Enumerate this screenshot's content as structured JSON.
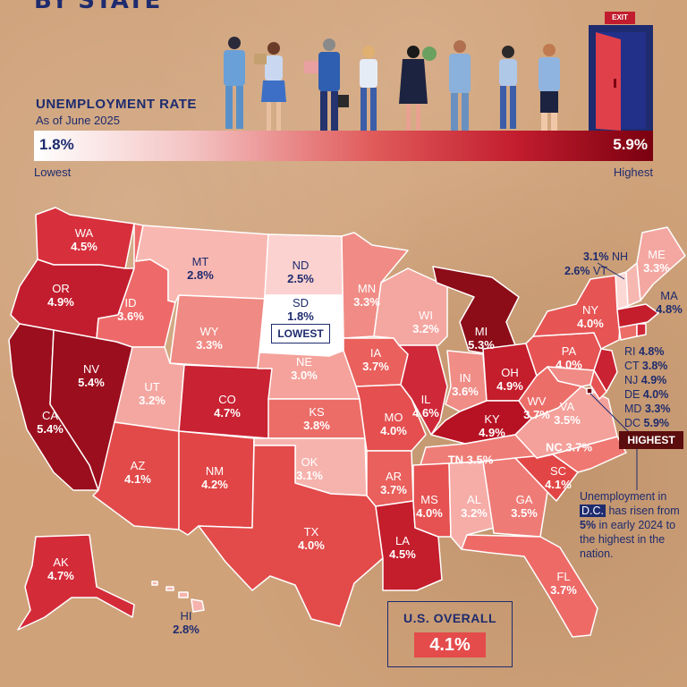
{
  "title": "BY STATE",
  "legend": {
    "heading": "UNEMPLOYMENT RATE",
    "subheading": "As of June 2025",
    "min_value": "1.8%",
    "max_value": "5.9%",
    "min_caption": "Lowest",
    "max_caption": "Highest",
    "exit_sign": "EXIT"
  },
  "colors": {
    "navy": "#1e2b6e",
    "scale": [
      "#ffffff",
      "#f4c4c4",
      "#e05a5a",
      "#c21d2e",
      "#7a0010"
    ]
  },
  "states": {
    "WA": {
      "abbr": "WA",
      "rate": "4.5%"
    },
    "OR": {
      "abbr": "OR",
      "rate": "4.9%"
    },
    "CA": {
      "abbr": "CA",
      "rate": "5.4%"
    },
    "NV": {
      "abbr": "NV",
      "rate": "5.4%"
    },
    "ID": {
      "abbr": "ID",
      "rate": "3.6%"
    },
    "MT": {
      "abbr": "MT",
      "rate": "2.8%"
    },
    "WY": {
      "abbr": "WY",
      "rate": "3.3%"
    },
    "UT": {
      "abbr": "UT",
      "rate": "3.2%"
    },
    "AZ": {
      "abbr": "AZ",
      "rate": "4.1%"
    },
    "CO": {
      "abbr": "CO",
      "rate": "4.7%"
    },
    "NM": {
      "abbr": "NM",
      "rate": "4.2%"
    },
    "ND": {
      "abbr": "ND",
      "rate": "2.5%"
    },
    "SD": {
      "abbr": "SD",
      "rate": "1.8%"
    },
    "NE": {
      "abbr": "NE",
      "rate": "3.0%"
    },
    "KS": {
      "abbr": "KS",
      "rate": "3.8%"
    },
    "OK": {
      "abbr": "OK",
      "rate": "3.1%"
    },
    "TX": {
      "abbr": "TX",
      "rate": "4.0%"
    },
    "MN": {
      "abbr": "MN",
      "rate": "3.3%"
    },
    "IA": {
      "abbr": "IA",
      "rate": "3.7%"
    },
    "MO": {
      "abbr": "MO",
      "rate": "4.0%"
    },
    "AR": {
      "abbr": "AR",
      "rate": "3.7%"
    },
    "LA": {
      "abbr": "LA",
      "rate": "4.5%"
    },
    "WI": {
      "abbr": "WI",
      "rate": "3.2%"
    },
    "IL": {
      "abbr": "IL",
      "rate": "4.6%"
    },
    "MI": {
      "abbr": "MI",
      "rate": "5.3%"
    },
    "IN": {
      "abbr": "IN",
      "rate": "3.6%"
    },
    "OH": {
      "abbr": "OH",
      "rate": "4.9%"
    },
    "KY": {
      "abbr": "KY",
      "rate": "4.9%"
    },
    "TN": {
      "abbr": "TN",
      "rate": "3.5%"
    },
    "MS": {
      "abbr": "MS",
      "rate": "4.0%"
    },
    "AL": {
      "abbr": "AL",
      "rate": "3.2%"
    },
    "GA": {
      "abbr": "GA",
      "rate": "3.5%"
    },
    "FL": {
      "abbr": "FL",
      "rate": "3.7%"
    },
    "SC": {
      "abbr": "SC",
      "rate": "4.1%"
    },
    "NC": {
      "abbr": "NC",
      "rate": "3.7%"
    },
    "VA": {
      "abbr": "VA",
      "rate": "3.5%"
    },
    "WV": {
      "abbr": "WV",
      "rate": "3.7%"
    },
    "PA": {
      "abbr": "PA",
      "rate": "4.0%"
    },
    "NY": {
      "abbr": "NY",
      "rate": "4.0%"
    },
    "ME": {
      "abbr": "ME",
      "rate": "3.3%"
    },
    "MA": {
      "abbr": "MA",
      "rate": "4.8%"
    },
    "AK": {
      "abbr": "AK",
      "rate": "4.7%"
    },
    "HI": {
      "abbr": "HI",
      "rate": "2.8%"
    },
    "NH": {
      "abbr": "NH",
      "rate": "3.1%"
    },
    "VT": {
      "abbr": "VT",
      "rate": "2.6%"
    },
    "RI": {
      "abbr": "RI",
      "rate": "4.8%"
    },
    "CT": {
      "abbr": "CT",
      "rate": "3.8%"
    },
    "NJ": {
      "abbr": "NJ",
      "rate": "4.9%"
    },
    "DE": {
      "abbr": "DE",
      "rate": "4.0%"
    },
    "MD": {
      "abbr": "MD",
      "rate": "3.3%"
    },
    "DC": {
      "abbr": "DC",
      "rate": "5.9%"
    }
  },
  "callouts": {
    "lowest": "LOWEST",
    "highest": "HIGHEST",
    "dc_note": {
      "line1": "Unemployment in",
      "dc": "D.C.",
      "mid": " has risen from ",
      "pct": "5%",
      "tail": " in early 2024 to the highest in the nation."
    }
  },
  "overall": {
    "label": "U.S. OVERALL",
    "value": "4.1%"
  }
}
